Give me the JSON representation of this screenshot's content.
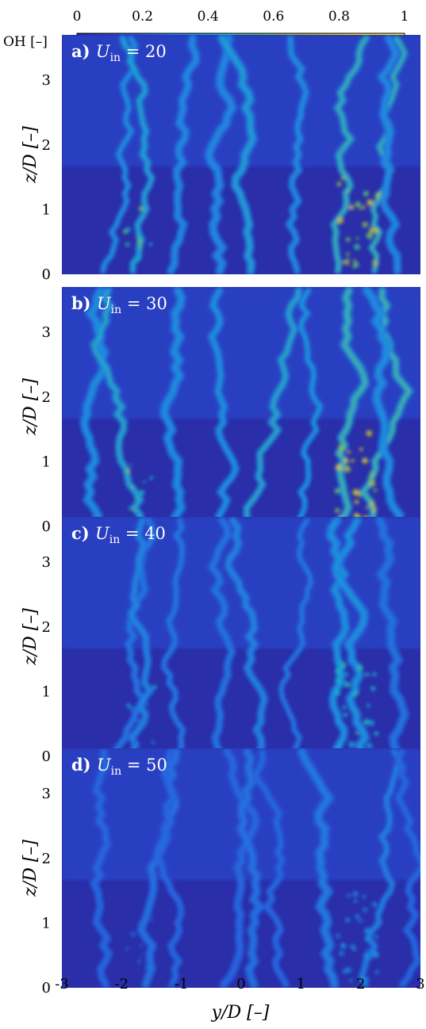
{
  "chart_data": {
    "type": "heatmap",
    "colorbar": {
      "label": "OH [–]",
      "ticks": [
        0,
        0.2,
        0.4,
        0.6,
        0.8,
        1
      ],
      "tick_labels": [
        "0",
        "0.2",
        "0.4",
        "0.6",
        "0.8",
        "1"
      ],
      "range": [
        0,
        1
      ],
      "colors": [
        "#2a1f9a",
        "#2b4fd6",
        "#1f82e8",
        "#18b7c6",
        "#5cc56a",
        "#c7bb2a",
        "#f4dc1c",
        "#f9f21e"
      ]
    },
    "xlabel": "y/D [–]",
    "ylabel": "z/D [–]",
    "xlim": [
      -3,
      3
    ],
    "ylim": [
      0,
      3.7
    ],
    "xticks": [
      -3,
      -2,
      -1,
      0,
      1,
      2,
      3
    ],
    "xtick_labels": [
      "-3",
      "-2",
      "-1",
      "0",
      "1",
      "2",
      "3"
    ],
    "yticks": [
      0,
      1,
      2,
      3
    ],
    "ytick_labels": [
      "0",
      "1",
      "2",
      "3"
    ],
    "panels": [
      {
        "label": "a) U_in = 20",
        "tag": "a)",
        "var": "U",
        "sub": "in",
        "eq": "= 20",
        "intensity": 0.72
      },
      {
        "label": "b) U_in = 30",
        "tag": "b)",
        "var": "U",
        "sub": "in",
        "eq": "= 30",
        "intensity": 0.78
      },
      {
        "label": "c) U_in = 40",
        "tag": "c)",
        "var": "U",
        "sub": "in",
        "eq": "= 40",
        "intensity": 0.48
      },
      {
        "label": "d) U_in = 50",
        "tag": "d)",
        "var": "U",
        "sub": "in",
        "eq": "= 50",
        "intensity": 0.34
      }
    ]
  }
}
